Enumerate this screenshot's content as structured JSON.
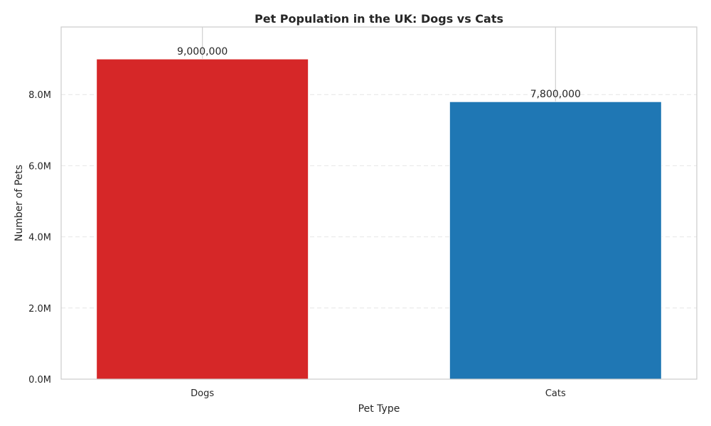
{
  "chart_data": {
    "type": "bar",
    "title": "Pet Population in the UK: Dogs vs Cats",
    "xlabel": "Pet Type",
    "ylabel": "Number of Pets",
    "categories": [
      "Dogs",
      "Cats"
    ],
    "values": [
      9000000,
      7800000
    ],
    "value_labels": [
      "9,000,000",
      "7,800,000"
    ],
    "colors": [
      "#d62728",
      "#1f77b4"
    ],
    "ylim": [
      0,
      9900000
    ],
    "yticks": [
      0,
      2000000,
      4000000,
      6000000,
      8000000
    ],
    "ytick_labels": [
      "0.0M",
      "2.0M",
      "4.0M",
      "6.0M",
      "8.0M"
    ],
    "grid": "y dashed"
  }
}
